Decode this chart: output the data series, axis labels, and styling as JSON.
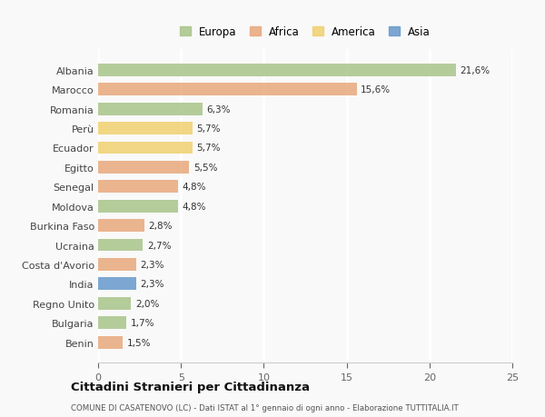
{
  "countries": [
    "Albania",
    "Marocco",
    "Romania",
    "Perù",
    "Ecuador",
    "Egitto",
    "Senegal",
    "Moldova",
    "Burkina Faso",
    "Ucraina",
    "Costa d'Avorio",
    "India",
    "Regno Unito",
    "Bulgaria",
    "Benin"
  ],
  "values": [
    21.6,
    15.6,
    6.3,
    5.7,
    5.7,
    5.5,
    4.8,
    4.8,
    2.8,
    2.7,
    2.3,
    2.3,
    2.0,
    1.7,
    1.5
  ],
  "labels": [
    "21,6%",
    "15,6%",
    "6,3%",
    "5,7%",
    "5,7%",
    "5,5%",
    "4,8%",
    "4,8%",
    "2,8%",
    "2,7%",
    "2,3%",
    "2,3%",
    "2,0%",
    "1,7%",
    "1,5%"
  ],
  "colors": [
    "#a8c48a",
    "#e8a87c",
    "#a8c48a",
    "#f0d070",
    "#f0d070",
    "#e8a87c",
    "#e8a87c",
    "#a8c48a",
    "#e8a87c",
    "#a8c48a",
    "#e8a87c",
    "#6699cc",
    "#a8c48a",
    "#a8c48a",
    "#e8a87c"
  ],
  "legend": {
    "Europa": "#a8c48a",
    "Africa": "#e8a87c",
    "America": "#f0d070",
    "Asia": "#6699cc"
  },
  "title": "Cittadini Stranieri per Cittadinanza",
  "subtitle": "COMUNE DI CASATENOVO (LC) - Dati ISTAT al 1° gennaio di ogni anno - Elaborazione TUTTITALIA.IT",
  "xlim": [
    0,
    25
  ],
  "xticks": [
    0,
    5,
    10,
    15,
    20,
    25
  ],
  "background_color": "#f9f9f9",
  "grid_color": "#ffffff",
  "bar_height": 0.65
}
